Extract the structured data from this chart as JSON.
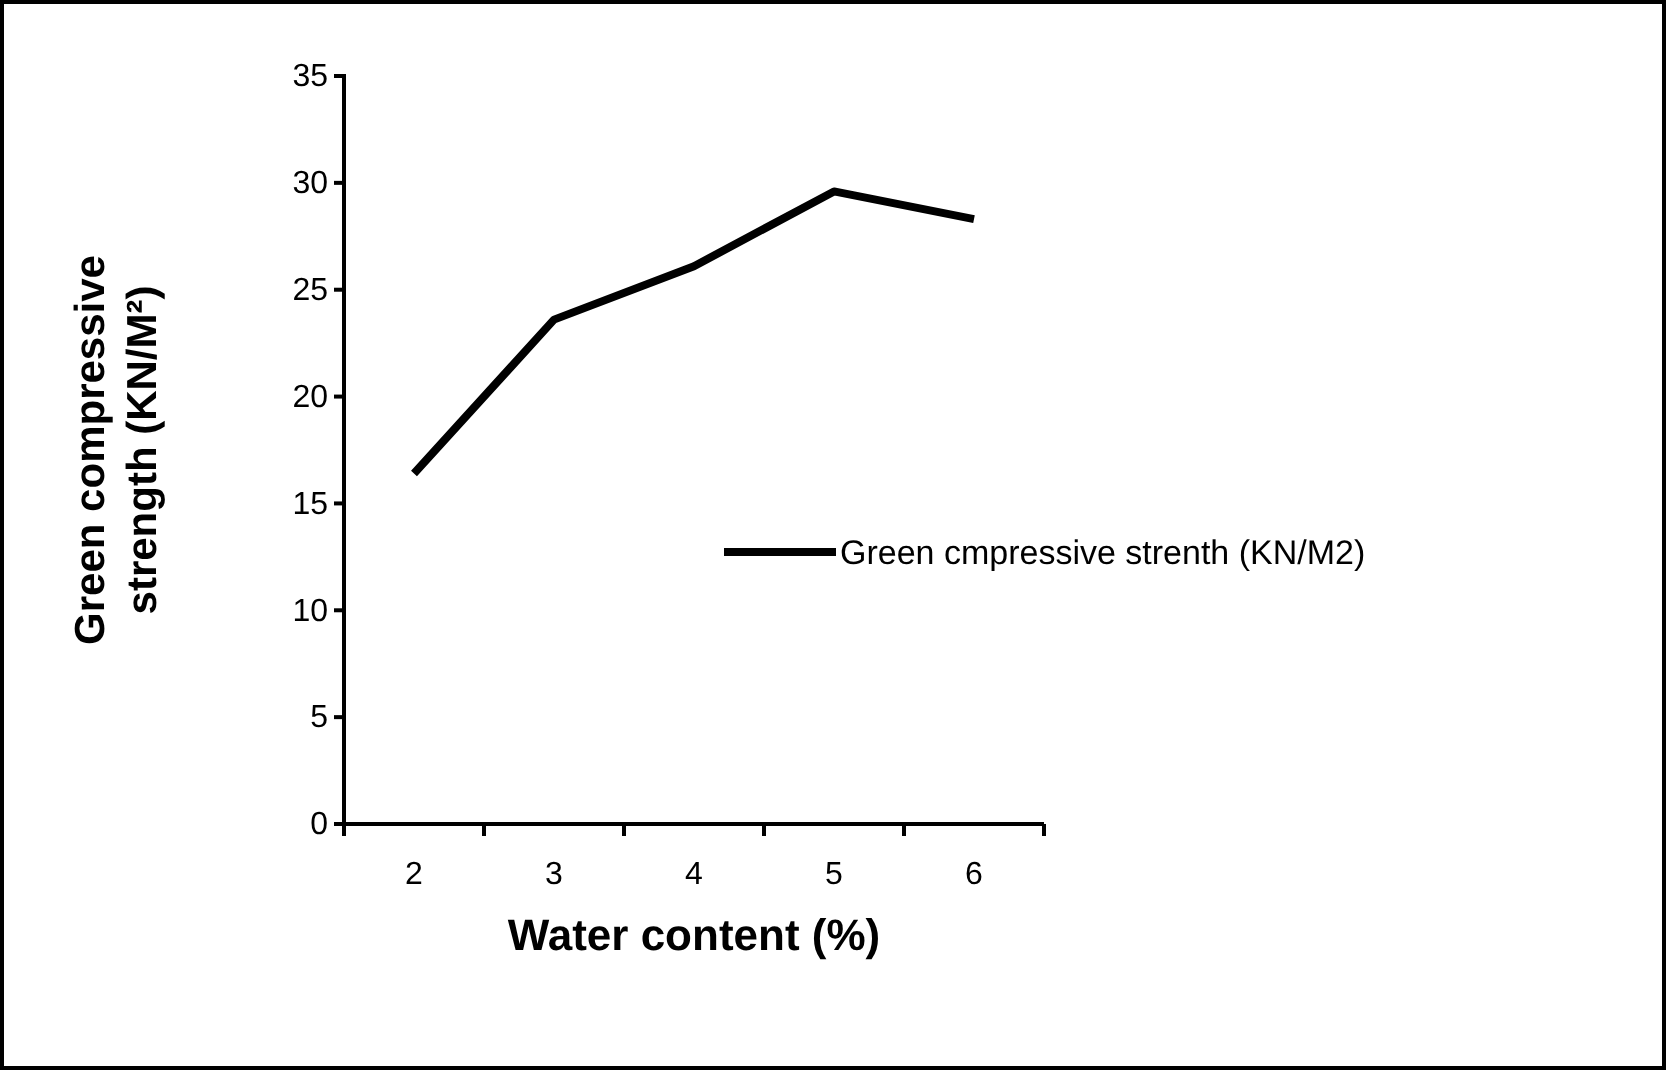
{
  "chart_data": {
    "type": "line",
    "xlabel": "Water content (%)",
    "ylabel": "Green compressive strength (KN/M²)",
    "categories": [
      "2",
      "3",
      "4",
      "5",
      "6"
    ],
    "series": [
      {
        "name": "Green cmpressive strenth (KN/M2)",
        "color": "#000000",
        "values": [
          16.4,
          23.6,
          26.1,
          29.6,
          28.3
        ]
      }
    ],
    "ylim": [
      0,
      35
    ],
    "yticks": [
      0,
      5,
      10,
      15,
      20,
      25,
      30,
      35
    ],
    "grid": false,
    "legend": "right",
    "marker": "none",
    "line_style": "solid"
  }
}
